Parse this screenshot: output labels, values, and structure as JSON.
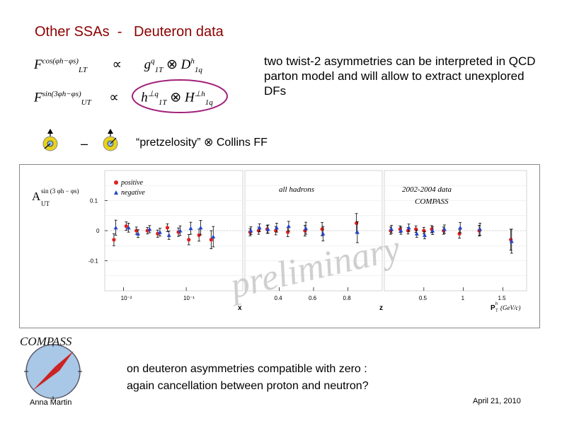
{
  "slide": {
    "title": "Other SSAs  -   Deuteron data",
    "formulas": [
      {
        "lhs": "F",
        "lhs_sup": "cos(φh−φs)",
        "lhs_sub": "LT",
        "rel": "∝",
        "rhs": "g",
        "rhs_sup": "q",
        "rhs_sub": "1T",
        "op": "⊗",
        "rhs2": "D",
        "rhs2_sup": "h",
        "rhs2_sub": "1q"
      },
      {
        "lhs": "F",
        "lhs_sup": "sin(3φh−φs)",
        "lhs_sub": "UT",
        "rel": "∝",
        "rhs": "h",
        "rhs_sup": "⊥q",
        "rhs_sub": "1T",
        "op": "⊗",
        "rhs2": "H",
        "rhs2_sup": "⊥h",
        "rhs2_sub": "1q"
      }
    ],
    "description": "two twist-2 asymmetries can be interpreted in QCD parton model and will allow to extract unexplored DFs",
    "minus_sign": "–",
    "pretzelosity_line": "“pretzelosity” ⊗ Collins FF",
    "conclusion_line1": "on deuteron asymmetries compatible with zero :",
    "conclusion_line2": "again cancellation between proton and neutron?",
    "author": "Anna Martin",
    "date": "April 21, 2010",
    "logo_text": "COMPASS",
    "colors": {
      "title": "#8b0000",
      "positive": "#dd2222",
      "negative": "#2244cc",
      "oval": "#a0207a",
      "logo_arrow": "#cc2222",
      "logo_disc": "#a9c7e6",
      "spin_ball": "#e8d21a"
    }
  },
  "chart_data": [
    {
      "type": "scatter",
      "xlabel": "x",
      "x_scale": "log",
      "xlim": [
        0.005,
        0.8
      ],
      "ylim": [
        -0.2,
        0.2
      ],
      "x_ticks": [
        "10⁻²",
        "10⁻¹"
      ],
      "y_ticks": [
        "0.1",
        "0",
        "-0.1"
      ],
      "ylabel": "A",
      "ylabel_sup": "sin (3 φh − φs)",
      "ylabel_sub": "UT",
      "legend": [
        "positive",
        "negative"
      ],
      "series": [
        {
          "name": "positive",
          "x": [
            0.007,
            0.011,
            0.016,
            0.024,
            0.035,
            0.05,
            0.075,
            0.11,
            0.16,
            0.25
          ],
          "y": [
            -0.03,
            0.015,
            0.0,
            0.0,
            -0.01,
            0.01,
            -0.005,
            -0.03,
            -0.015,
            -0.03
          ],
          "err": [
            0.02,
            0.014,
            0.012,
            0.011,
            0.012,
            0.013,
            0.014,
            0.017,
            0.02,
            0.03
          ]
        },
        {
          "name": "negative",
          "x": [
            0.0075,
            0.012,
            0.017,
            0.026,
            0.038,
            0.053,
            0.08,
            0.118,
            0.17,
            0.27
          ],
          "y": [
            0.01,
            0.01,
            -0.01,
            0.005,
            -0.005,
            -0.015,
            0.0,
            0.008,
            0.01,
            -0.02
          ],
          "err": [
            0.025,
            0.015,
            0.013,
            0.012,
            0.013,
            0.014,
            0.016,
            0.02,
            0.024,
            0.034
          ]
        }
      ]
    },
    {
      "type": "scatter",
      "xlabel": "z",
      "xlim": [
        0.2,
        1.0
      ],
      "ylim": [
        -0.2,
        0.2
      ],
      "x_ticks": [
        "0.4",
        "0.6",
        "0.8"
      ],
      "annotation": "all hadrons",
      "series": [
        {
          "name": "positive",
          "x": [
            0.23,
            0.28,
            0.33,
            0.38,
            0.45,
            0.55,
            0.65,
            0.85
          ],
          "y": [
            -0.005,
            0.0,
            0.005,
            0.0,
            -0.005,
            0.0,
            0.005,
            0.025
          ],
          "err": [
            0.012,
            0.012,
            0.013,
            0.014,
            0.015,
            0.018,
            0.022,
            0.032
          ]
        },
        {
          "name": "negative",
          "x": [
            0.235,
            0.285,
            0.335,
            0.385,
            0.455,
            0.555,
            0.655,
            0.855
          ],
          "y": [
            0.0,
            0.01,
            0.005,
            0.01,
            0.015,
            0.008,
            -0.01,
            -0.005
          ],
          "err": [
            0.013,
            0.013,
            0.014,
            0.015,
            0.016,
            0.02,
            0.024,
            0.035
          ]
        }
      ]
    },
    {
      "type": "scatter",
      "xlabel": "P",
      "xlabel_sup": "h",
      "xlabel_sub": "T",
      "xlabel_unit": "(GeV/c)",
      "xlim": [
        0.0,
        1.8
      ],
      "ylim": [
        -0.2,
        0.2
      ],
      "x_ticks": [
        "0.5",
        "1",
        "1.5"
      ],
      "annotation": "2002-2004 data",
      "annotation2": "COMPASS",
      "series": [
        {
          "name": "positive",
          "x": [
            0.08,
            0.2,
            0.3,
            0.4,
            0.5,
            0.6,
            0.75,
            0.95,
            1.2,
            1.6
          ],
          "y": [
            0.0,
            0.005,
            0.0,
            0.005,
            0.0,
            0.005,
            0.0,
            -0.01,
            0.0,
            -0.03
          ],
          "err": [
            0.012,
            0.011,
            0.011,
            0.011,
            0.011,
            0.012,
            0.012,
            0.015,
            0.018,
            0.035
          ]
        },
        {
          "name": "negative",
          "x": [
            0.09,
            0.21,
            0.31,
            0.41,
            0.51,
            0.61,
            0.76,
            0.96,
            1.21,
            1.61
          ],
          "y": [
            0.005,
            0.0,
            0.01,
            -0.01,
            -0.015,
            0.0,
            0.005,
            0.01,
            0.005,
            -0.035
          ],
          "err": [
            0.013,
            0.012,
            0.012,
            0.012,
            0.012,
            0.013,
            0.014,
            0.017,
            0.02,
            0.04
          ]
        }
      ]
    }
  ],
  "watermark": "preliminary"
}
